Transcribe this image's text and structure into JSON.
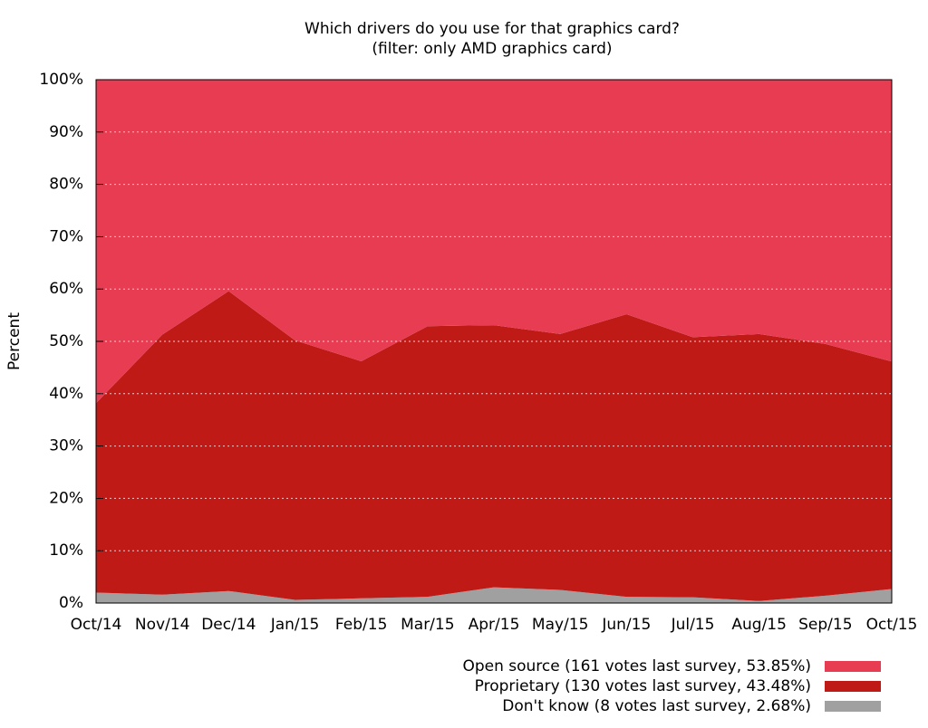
{
  "chart_data": {
    "type": "stacked-area",
    "title": "Which drivers do you use for that graphics card?",
    "subtitle": "(filter: only AMD graphics card)",
    "y_label": "Percent",
    "categories": [
      "Oct/14",
      "Nov/14",
      "Dec/14",
      "Jan/15",
      "Feb/15",
      "Mar/15",
      "Apr/15",
      "May/15",
      "Jun/15",
      "Jul/15",
      "Aug/15",
      "Sep/15",
      "Oct/15"
    ],
    "series": [
      {
        "name": "Don't know (8 votes last survey, 2.68%)",
        "color": "#a0a0a0",
        "values": [
          2.0,
          1.6,
          2.3,
          0.6,
          0.9,
          1.2,
          3.0,
          2.5,
          1.2,
          1.1,
          0.4,
          1.4,
          2.68
        ]
      },
      {
        "name": "Proprietary (130 votes last survey, 43.48%)",
        "color": "#c01a17",
        "values": [
          36.2,
          49.7,
          57.3,
          49.6,
          45.3,
          51.7,
          50.1,
          48.9,
          54.0,
          49.7,
          51.0,
          48.1,
          43.48
        ]
      },
      {
        "name": "Open source (161 votes last survey, 53.85%)",
        "color": "#e83c52",
        "values": [
          61.8,
          48.7,
          40.4,
          49.8,
          53.8,
          47.1,
          46.9,
          48.6,
          44.8,
          49.2,
          48.6,
          50.5,
          53.85
        ]
      }
    ],
    "ylim": [
      0,
      100
    ],
    "yticks": [
      {
        "value": 0,
        "label": "0%"
      },
      {
        "value": 10,
        "label": "10%"
      },
      {
        "value": 20,
        "label": "20%"
      },
      {
        "value": 30,
        "label": "30%"
      },
      {
        "value": 40,
        "label": "40%"
      },
      {
        "value": 50,
        "label": "50%"
      },
      {
        "value": 60,
        "label": "60%"
      },
      {
        "value": 70,
        "label": "70%"
      },
      {
        "value": 80,
        "label": "80%"
      },
      {
        "value": 90,
        "label": "90%"
      },
      {
        "value": 100,
        "label": "100%"
      }
    ],
    "grid": true
  }
}
